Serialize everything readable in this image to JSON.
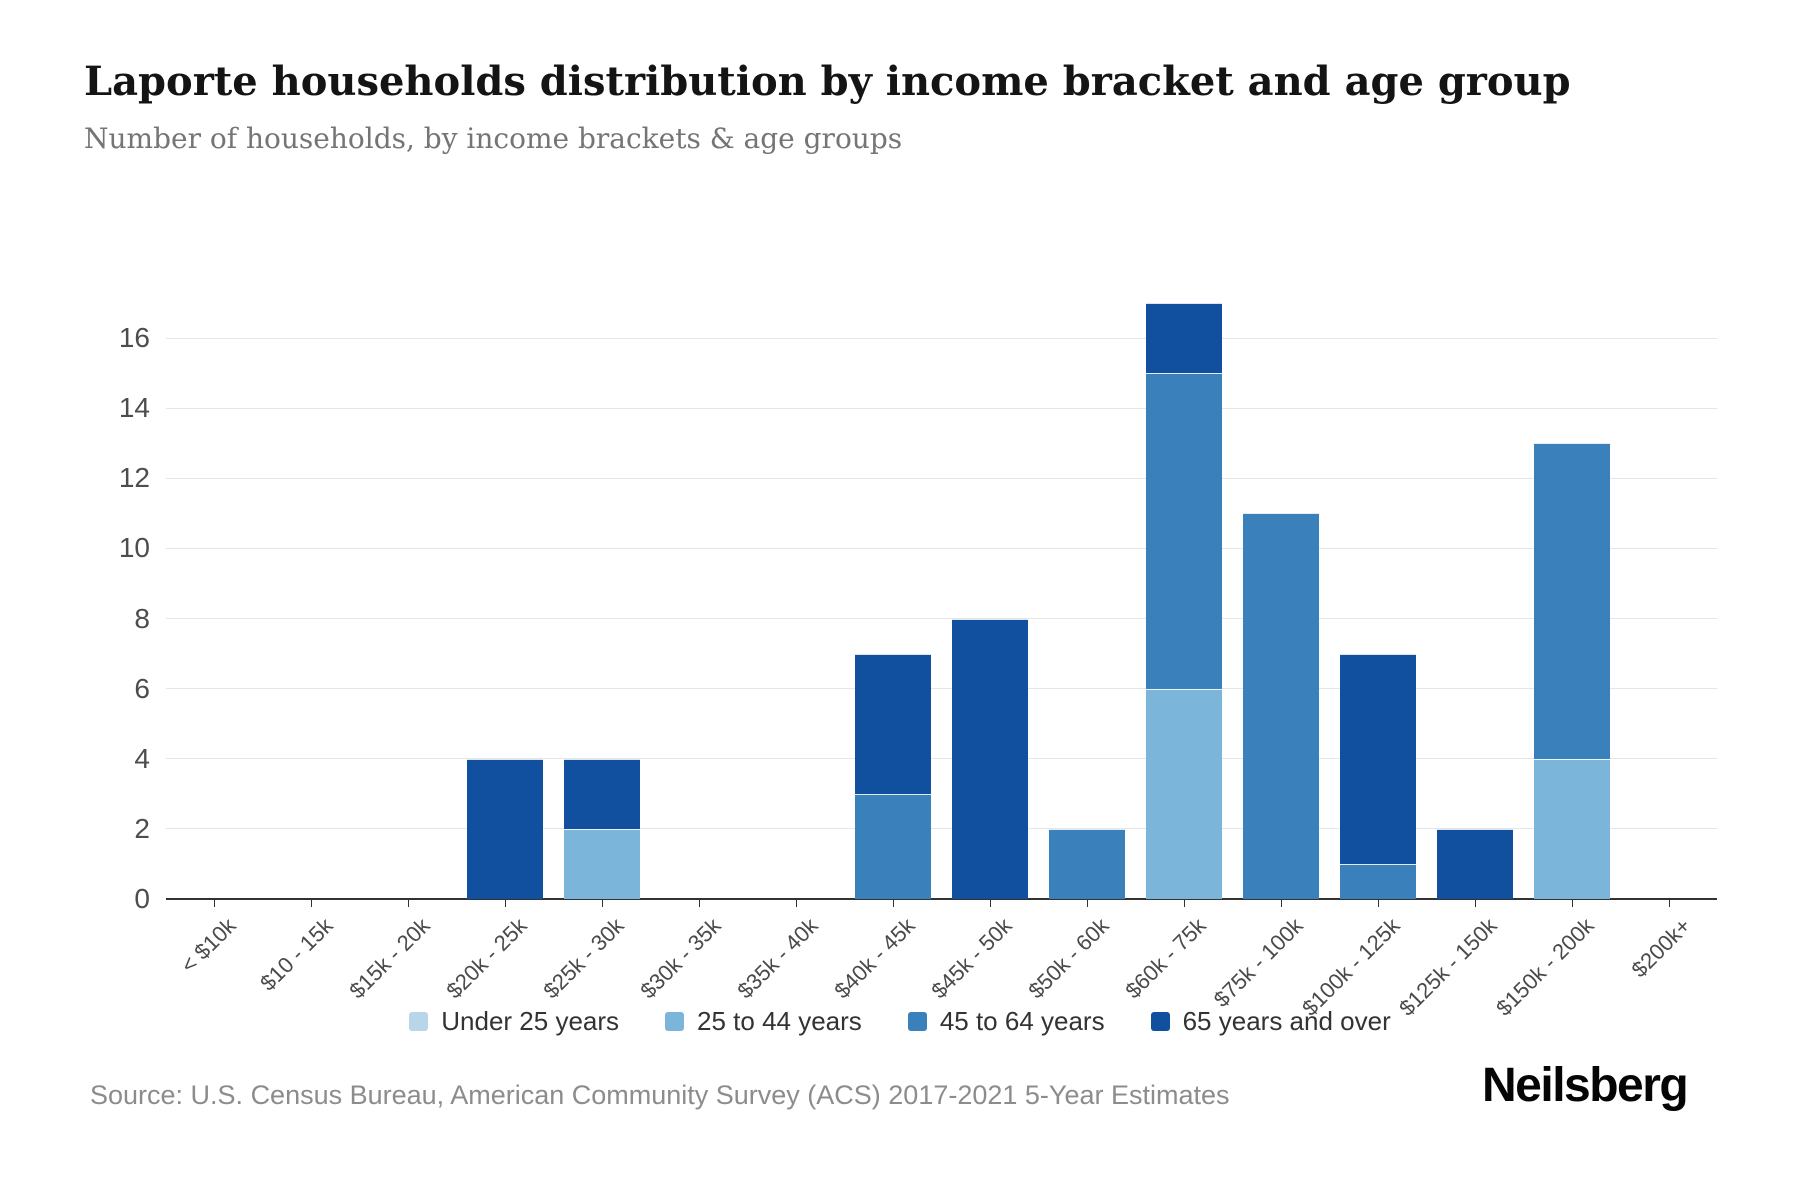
{
  "header": {
    "title": "Laporte households distribution by income bracket and age group",
    "subtitle": "Number of households, by income brackets & age groups"
  },
  "footer": {
    "source": "Source: U.S. Census Bureau, American Community Survey (ACS) 2017-2021 5-Year Estimates",
    "brand": "Neilsberg"
  },
  "chart_data": {
    "type": "bar",
    "stacked": true,
    "title": "Laporte households distribution by income bracket and age group",
    "xlabel": "",
    "ylabel": "Number of households",
    "ylim": [
      0,
      17
    ],
    "yticks": [
      0,
      2,
      4,
      6,
      8,
      10,
      12,
      14,
      16
    ],
    "grid": true,
    "legend_position": "bottom",
    "categories": [
      "< $10k",
      "$10 - 15k",
      "$15k - 20k",
      "$20k - 25k",
      "$25k - 30k",
      "$30k - 35k",
      "$35k - 40k",
      "$40k - 45k",
      "$45k - 50k",
      "$50k - 60k",
      "$60k - 75k",
      "$75k - 100k",
      "$100k - 125k",
      "$125k - 150k",
      "$150k - 200k",
      "$200k+"
    ],
    "series": [
      {
        "name": "Under 25 years",
        "color": "#b9d5ea",
        "values": [
          0,
          0,
          0,
          0,
          0,
          0,
          0,
          0,
          0,
          0,
          0,
          0,
          0,
          0,
          0,
          0
        ]
      },
      {
        "name": "25 to 44 years",
        "color": "#7cb5da",
        "values": [
          0,
          0,
          0,
          0,
          2,
          0,
          0,
          0,
          0,
          0,
          6,
          0,
          0,
          0,
          4,
          0
        ]
      },
      {
        "name": "45 to 64 years",
        "color": "#3a80ba",
        "values": [
          0,
          0,
          0,
          0,
          0,
          0,
          0,
          3,
          0,
          2,
          9,
          11,
          1,
          0,
          9,
          0
        ]
      },
      {
        "name": "65 years and over",
        "color": "#11509e",
        "values": [
          0,
          0,
          0,
          4,
          2,
          0,
          0,
          4,
          8,
          0,
          2,
          0,
          6,
          2,
          0,
          0
        ]
      }
    ],
    "totals": [
      0,
      0,
      0,
      4,
      4,
      0,
      0,
      7,
      8,
      2,
      17,
      11,
      7,
      2,
      13,
      0
    ]
  }
}
